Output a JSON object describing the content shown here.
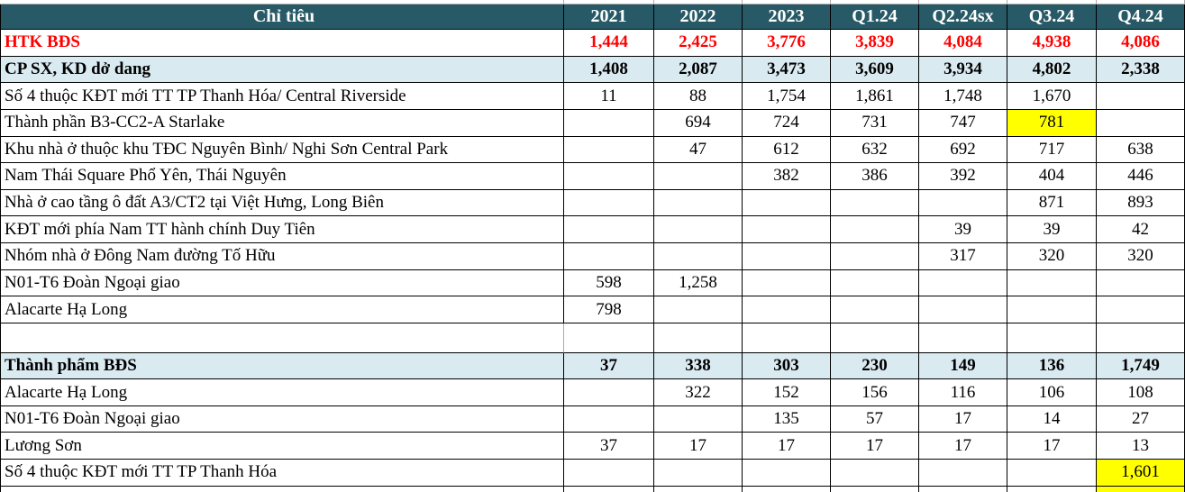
{
  "table": {
    "header": {
      "label": "Chỉ tiêu",
      "columns": [
        "2021",
        "2022",
        "2023",
        "Q1.24",
        "Q2.24sx",
        "Q3.24",
        "Q4.24"
      ]
    },
    "rows": [
      {
        "label": "HTK BĐS",
        "style": "total-red",
        "comment": false,
        "values": [
          "1,444",
          "2,425",
          "3,776",
          "3,839",
          "4,084",
          "4,938",
          "4,086"
        ]
      },
      {
        "label": "CP SX, KD dở dang",
        "style": "section",
        "comment": false,
        "values": [
          "1,408",
          "2,087",
          "3,473",
          "3,609",
          "3,934",
          "4,802",
          "2,338"
        ]
      },
      {
        "label": "Số 4 thuộc KĐT mới TT TP Thanh Hóa/ Central Riverside",
        "style": "detail",
        "comment": true,
        "values": [
          "11",
          "88",
          "1,754",
          "1,861",
          "1,748",
          "1,670",
          ""
        ]
      },
      {
        "label": "Thành phần B3-CC2-A Starlake",
        "style": "detail",
        "comment": true,
        "values": [
          "",
          "694",
          "724",
          "731",
          "747",
          "781",
          ""
        ],
        "highlight": [
          5
        ]
      },
      {
        "label": "Khu nhà ở thuộc khu TĐC Nguyên Bình/ Nghi Sơn Central Park",
        "style": "detail",
        "comment": true,
        "values": [
          "",
          "47",
          "612",
          "632",
          "692",
          "717",
          "638"
        ]
      },
      {
        "label": "Nam Thái Square Phổ Yên, Thái Nguyên",
        "style": "detail",
        "comment": true,
        "values": [
          "",
          "",
          "382",
          "386",
          "392",
          "404",
          "446"
        ]
      },
      {
        "label": "Nhà ở cao tầng ô đất A3/CT2 tại Việt Hưng, Long Biên",
        "style": "detail",
        "comment": true,
        "values": [
          "",
          "",
          "",
          "",
          "",
          "871",
          "893"
        ]
      },
      {
        "label": "KĐT mới phía Nam TT hành chính Duy Tiên",
        "style": "detail",
        "comment": false,
        "values": [
          "",
          "",
          "",
          "",
          "39",
          "39",
          "42"
        ]
      },
      {
        "label": "Nhóm nhà ở Đông Nam đường Tố Hữu",
        "style": "detail",
        "comment": false,
        "values": [
          "",
          "",
          "",
          "",
          "317",
          "320",
          "320"
        ]
      },
      {
        "label": "N01-T6 Đoàn Ngoại giao",
        "style": "detail",
        "comment": false,
        "values": [
          "598",
          "1,258",
          "",
          "",
          "",
          "",
          ""
        ]
      },
      {
        "label": "Alacarte Hạ Long",
        "style": "detail",
        "comment": false,
        "values": [
          "798",
          "",
          "",
          "",
          "",
          "",
          ""
        ]
      },
      {
        "label": "",
        "style": "empty",
        "comment": false,
        "values": [
          "",
          "",
          "",
          "",
          "",
          "",
          ""
        ]
      },
      {
        "label": "Thành phẩm BĐS",
        "style": "section",
        "comment": false,
        "values": [
          "37",
          "338",
          "303",
          "230",
          "149",
          "136",
          "1,749"
        ]
      },
      {
        "label": "Alacarte Hạ Long",
        "style": "detail",
        "comment": false,
        "values": [
          "",
          "322",
          "152",
          "156",
          "116",
          "106",
          "108"
        ]
      },
      {
        "label": "N01-T6 Đoàn Ngoại giao",
        "style": "detail",
        "comment": false,
        "values": [
          "",
          "",
          "135",
          "57",
          "17",
          "14",
          "27"
        ]
      },
      {
        "label": "Lương Sơn",
        "style": "detail",
        "comment": false,
        "values": [
          "37",
          "17",
          "17",
          "17",
          "17",
          "17",
          "13"
        ]
      },
      {
        "label": "Số 4 thuộc KĐT mới TT TP Thanh Hóa",
        "style": "detail",
        "comment": false,
        "values": [
          "",
          "",
          "",
          "",
          "",
          "",
          "1,601"
        ],
        "highlight": [
          6
        ]
      }
    ],
    "colors": {
      "header_bg": "#275A66",
      "section_bg": "#DAEAF1",
      "highlight_bg": "#FFFF00",
      "total_text": "#FF0000",
      "comment_marker": "#FF0000",
      "gridline": "#ABABAB",
      "border": "#000000"
    }
  }
}
